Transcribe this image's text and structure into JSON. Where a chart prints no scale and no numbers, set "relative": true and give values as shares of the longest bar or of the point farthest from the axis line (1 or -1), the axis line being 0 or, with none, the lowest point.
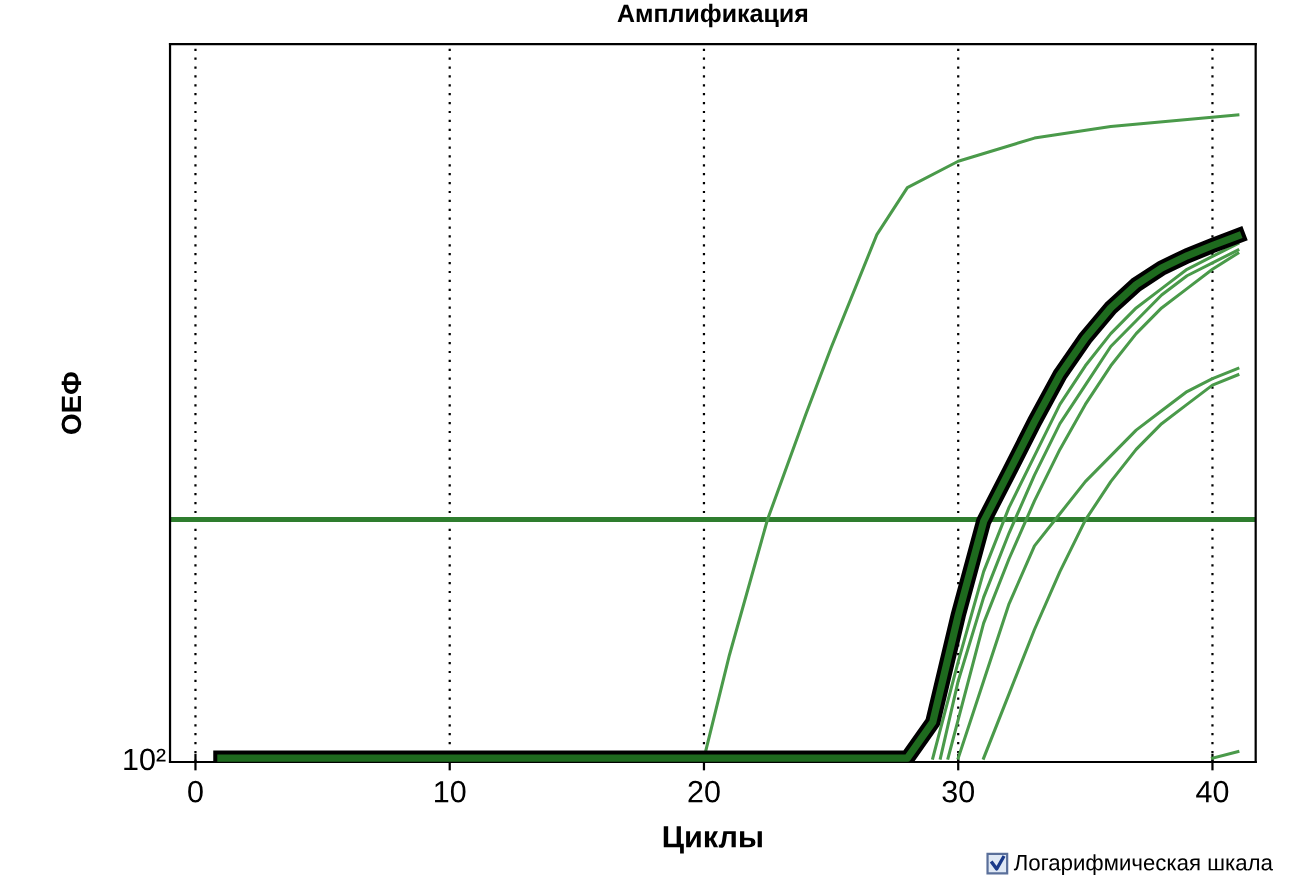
{
  "chart_data": {
    "type": "line",
    "title": "Амплификация",
    "xlabel": "Циклы",
    "ylabel": "ОЕФ",
    "relative": true,
    "grid": "x",
    "legend": false,
    "marker": "none",
    "line_style": "solid",
    "xlim": [
      -1,
      41.7
    ],
    "xticks": [
      0,
      10,
      20,
      30,
      40
    ],
    "ref_lines": [
      {
        "axis": "y",
        "value": 0.371,
        "color": "#2e7d2e"
      }
    ],
    "annotations": [
      "10²",
      "Логарифмическая шкала"
    ],
    "series": [
      {
        "color": "#4a9a4a",
        "x": [
          20,
          21,
          22.5,
          24,
          25,
          26.8,
          28,
          30,
          33,
          36,
          41
        ],
        "values": [
          0,
          0.16,
          0.371,
          0.534,
          0.638,
          0.814,
          0.887,
          0.928,
          0.964,
          0.982,
          1.0
        ]
      },
      {
        "color": "#4a9a4a",
        "x": [
          29,
          30,
          31,
          32,
          33,
          34,
          35,
          36,
          37,
          38,
          39,
          40,
          41
        ],
        "values": [
          0,
          0.15,
          0.29,
          0.39,
          0.47,
          0.55,
          0.61,
          0.66,
          0.7,
          0.73,
          0.76,
          0.78,
          0.8
        ]
      },
      {
        "color": "#4a9a4a",
        "x": [
          29.3,
          30,
          31,
          32,
          33,
          34,
          35,
          36,
          37,
          38,
          39,
          40,
          41
        ],
        "values": [
          0,
          0.12,
          0.25,
          0.35,
          0.44,
          0.52,
          0.58,
          0.64,
          0.68,
          0.72,
          0.75,
          0.77,
          0.79
        ]
      },
      {
        "color": "#4a9a4a",
        "x": [
          29.6,
          30,
          31,
          32,
          33,
          34,
          35,
          36,
          37,
          38,
          39,
          40,
          41
        ],
        "values": [
          0,
          0.06,
          0.21,
          0.31,
          0.4,
          0.48,
          0.55,
          0.61,
          0.66,
          0.7,
          0.73,
          0.76,
          0.785
        ]
      },
      {
        "color": "#4a9a4a",
        "x": [
          30,
          31,
          32,
          33,
          34,
          35,
          36,
          37,
          38,
          39,
          40,
          41
        ],
        "values": [
          0,
          0.12,
          0.24,
          0.33,
          0.38,
          0.43,
          0.47,
          0.51,
          0.54,
          0.57,
          0.59,
          0.606
        ]
      },
      {
        "color": "#4a9a4a",
        "x": [
          31,
          32,
          33,
          34,
          35,
          36,
          37,
          38,
          39,
          40,
          41
        ],
        "values": [
          0,
          0.1,
          0.2,
          0.29,
          0.37,
          0.43,
          0.48,
          0.52,
          0.55,
          0.58,
          0.596
        ]
      },
      {
        "color": "#4a9a4a",
        "x": [
          40,
          41
        ],
        "values": [
          0,
          0.01
        ]
      },
      {
        "color": "#1e6a1e",
        "x": [
          1,
          28,
          29,
          30,
          31,
          32,
          33,
          34,
          35,
          36,
          37,
          38,
          39,
          40,
          41
        ],
        "values": [
          0,
          0,
          0.056,
          0.222,
          0.368,
          0.445,
          0.523,
          0.596,
          0.653,
          0.7,
          0.736,
          0.762,
          0.781,
          0.797,
          0.812
        ]
      }
    ]
  }
}
